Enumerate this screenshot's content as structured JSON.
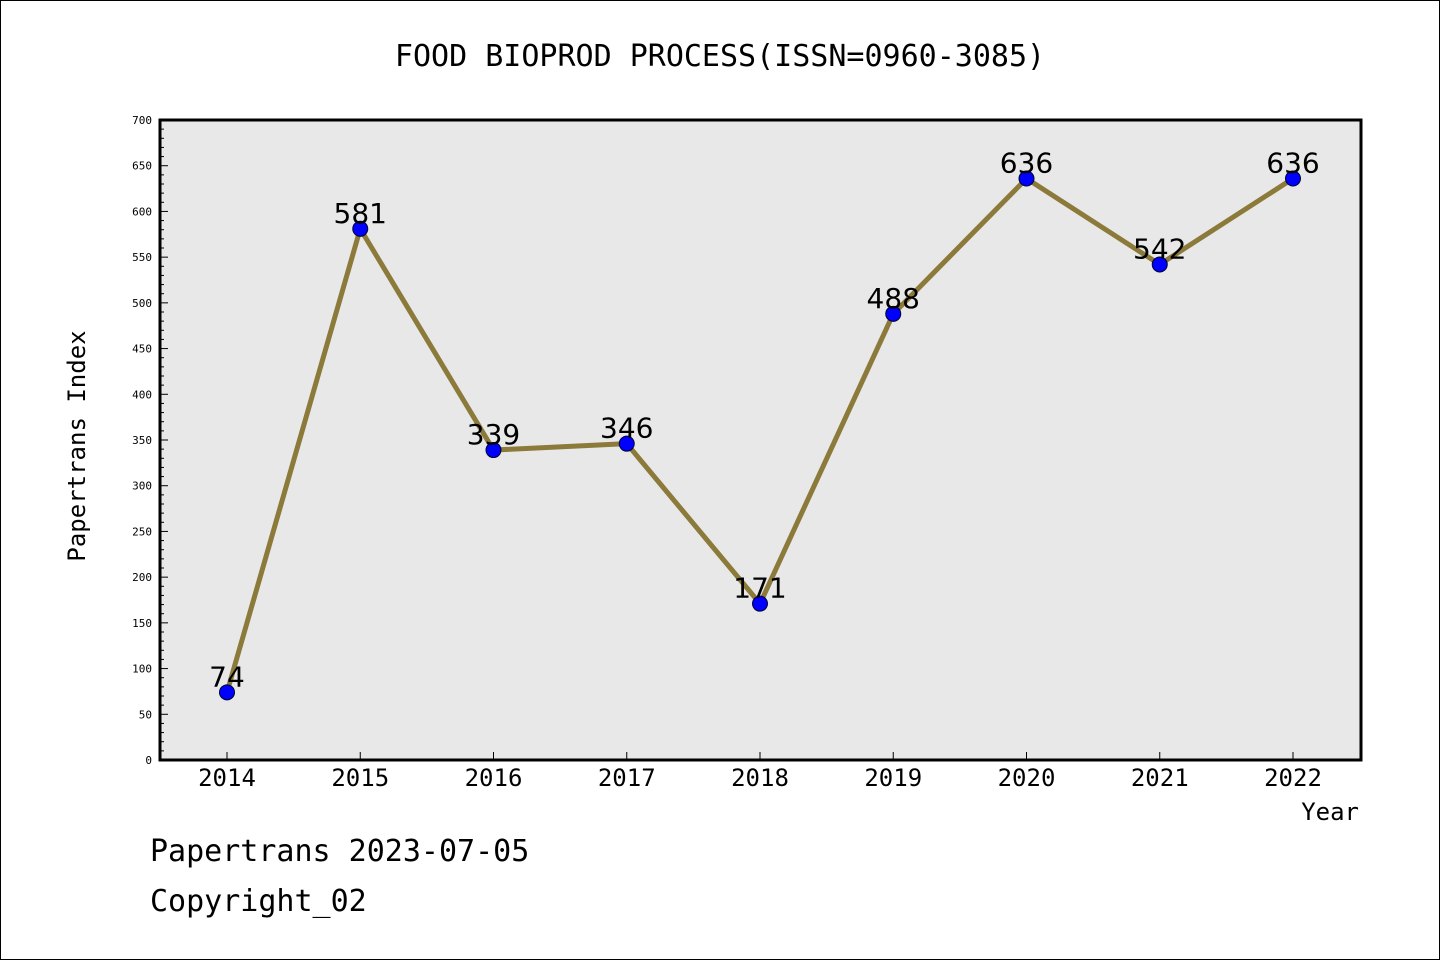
{
  "chart_data": {
    "type": "line",
    "title": "FOOD BIOPROD PROCESS(ISSN=0960-3085)",
    "xlabel": "Year",
    "ylabel": "Papertrans Index",
    "categories": [
      "2014",
      "2015",
      "2016",
      "2017",
      "2018",
      "2019",
      "2020",
      "2021",
      "2022"
    ],
    "values": [
      74,
      581,
      339,
      346,
      171,
      488,
      636,
      542,
      636
    ],
    "data_labels": [
      "74",
      "581",
      "339",
      "346",
      "171",
      "488",
      "636",
      "542",
      "636"
    ],
    "ylim": [
      0,
      700
    ],
    "yticks": [
      "0",
      "50",
      "100",
      "150",
      "200",
      "250",
      "300",
      "350",
      "400",
      "450",
      "500",
      "550",
      "600",
      "650",
      "700"
    ],
    "line_color": "#8b7a3a",
    "marker_color": "#0000ff",
    "plot_bg": "#e8e8e8",
    "grid": false,
    "legend": "none"
  },
  "footer": {
    "date_line": "Papertrans 2023-07-05",
    "copyright": "Copyright_02"
  }
}
